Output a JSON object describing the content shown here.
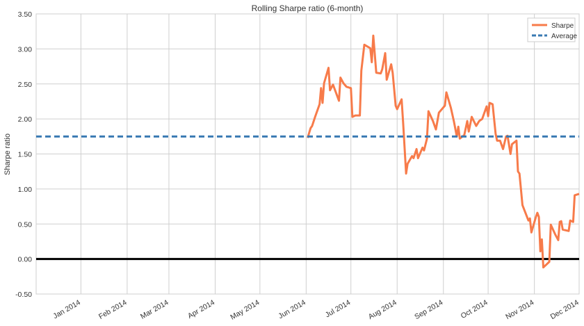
{
  "chart_data": {
    "type": "line",
    "title": "Rolling Sharpe ratio (6-month)",
    "ylabel": "Sharpe ratio",
    "xlim": [
      "2013-12-02",
      "2014-12-01"
    ],
    "xticks": [
      {
        "value": "2014-01-01",
        "label": "Jan 2014"
      },
      {
        "value": "2014-02-01",
        "label": "Feb 2014"
      },
      {
        "value": "2014-03-01",
        "label": "Mar 2014"
      },
      {
        "value": "2014-04-01",
        "label": "Apr 2014"
      },
      {
        "value": "2014-05-01",
        "label": "May 2014"
      },
      {
        "value": "2014-06-01",
        "label": "Jun 2014"
      },
      {
        "value": "2014-07-01",
        "label": "Jul 2014"
      },
      {
        "value": "2014-08-01",
        "label": "Aug 2014"
      },
      {
        "value": "2014-09-01",
        "label": "Sep 2014"
      },
      {
        "value": "2014-10-01",
        "label": "Oct 2014"
      },
      {
        "value": "2014-11-01",
        "label": "Nov 2014"
      },
      {
        "value": "2014-12-01",
        "label": "Dec 2014"
      }
    ],
    "ylim": [
      -0.5,
      3.5
    ],
    "yticks": [
      {
        "value": -0.5,
        "label": "-0.50"
      },
      {
        "value": 0,
        "label": "0.00"
      },
      {
        "value": 0.5,
        "label": "0.50"
      },
      {
        "value": 1,
        "label": "1.00"
      },
      {
        "value": 1.5,
        "label": "1.50"
      },
      {
        "value": 2,
        "label": "2.00"
      },
      {
        "value": 2.5,
        "label": "2.50"
      },
      {
        "value": 3,
        "label": "3.00"
      },
      {
        "value": 3.5,
        "label": "3.50"
      }
    ],
    "grid": true,
    "legend": "upper right",
    "baseline": 0,
    "x": [
      "2014-06-02",
      "2014-06-04",
      "2014-06-05",
      "2014-06-07",
      "2014-06-10",
      "2014-06-11",
      "2014-06-12",
      "2014-06-13",
      "2014-06-16",
      "2014-06-17",
      "2014-06-19",
      "2014-06-23",
      "2014-06-24",
      "2014-06-26",
      "2014-06-28",
      "2014-07-01",
      "2014-07-02",
      "2014-07-04",
      "2014-07-07",
      "2014-07-08",
      "2014-07-10",
      "2014-07-14",
      "2014-07-15",
      "2014-07-16",
      "2014-07-18",
      "2014-07-21",
      "2014-07-22",
      "2014-07-24",
      "2014-07-25",
      "2014-07-28",
      "2014-07-29",
      "2014-07-31",
      "2014-08-01",
      "2014-08-04",
      "2014-08-05",
      "2014-08-07",
      "2014-08-08",
      "2014-08-11",
      "2014-08-12",
      "2014-08-14",
      "2014-08-15",
      "2014-08-18",
      "2014-08-19",
      "2014-08-21",
      "2014-08-22",
      "2014-08-25",
      "2014-08-27",
      "2014-08-29",
      "2014-09-02",
      "2014-09-03",
      "2014-09-06",
      "2014-09-08",
      "2014-09-10",
      "2014-09-11",
      "2014-09-12",
      "2014-09-15",
      "2014-09-17",
      "2014-09-18",
      "2014-09-20",
      "2014-09-23",
      "2014-09-25",
      "2014-09-27",
      "2014-09-30",
      "2014-10-01",
      "2014-10-02",
      "2014-10-04",
      "2014-10-06",
      "2014-10-07",
      "2014-10-09",
      "2014-10-11",
      "2014-10-13",
      "2014-10-14",
      "2014-10-16",
      "2014-10-17",
      "2014-10-20",
      "2014-10-21",
      "2014-10-22",
      "2014-10-24",
      "2014-10-28",
      "2014-10-29",
      "2014-10-30",
      "2014-11-02",
      "2014-11-03",
      "2014-11-04",
      "2014-11-05",
      "2014-11-06",
      "2014-11-07",
      "2014-11-09",
      "2014-11-11",
      "2014-11-12",
      "2014-11-15",
      "2014-11-17",
      "2014-11-18",
      "2014-11-19",
      "2014-11-20",
      "2014-11-24",
      "2014-11-25",
      "2014-11-27",
      "2014-11-28",
      "2014-12-01"
    ],
    "series": [
      {
        "name": "Sharpe",
        "color": "#f77b4a",
        "values": [
          1.73,
          1.87,
          1.9,
          2.03,
          2.21,
          2.44,
          2.23,
          2.51,
          2.73,
          2.41,
          2.49,
          2.26,
          2.59,
          2.51,
          2.46,
          2.44,
          2.03,
          2.05,
          2.05,
          2.69,
          3.06,
          3.01,
          2.81,
          3.19,
          2.66,
          2.65,
          2.71,
          2.94,
          2.56,
          2.78,
          2.66,
          2.19,
          2.14,
          2.28,
          1.95,
          1.22,
          1.36,
          1.47,
          1.44,
          1.57,
          1.44,
          1.59,
          1.55,
          1.72,
          2.11,
          1.97,
          1.85,
          2.09,
          2.19,
          2.38,
          2.16,
          1.97,
          1.75,
          1.89,
          1.72,
          1.77,
          1.97,
          1.82,
          2.03,
          1.9,
          1.97,
          2.0,
          2.18,
          2.04,
          2.23,
          2.21,
          1.79,
          1.69,
          1.69,
          1.57,
          1.75,
          1.76,
          1.5,
          1.64,
          1.69,
          1.25,
          1.22,
          0.77,
          0.55,
          0.58,
          0.38,
          0.6,
          0.66,
          0.6,
          0.11,
          0.28,
          -0.12,
          -0.08,
          -0.04,
          0.49,
          0.35,
          0.27,
          0.53,
          0.54,
          0.42,
          0.4,
          0.55,
          0.53,
          0.91,
          0.93
        ]
      },
      {
        "name": "Average",
        "color": "#3a7ab3",
        "value": 1.75,
        "style": "dashed"
      }
    ]
  }
}
